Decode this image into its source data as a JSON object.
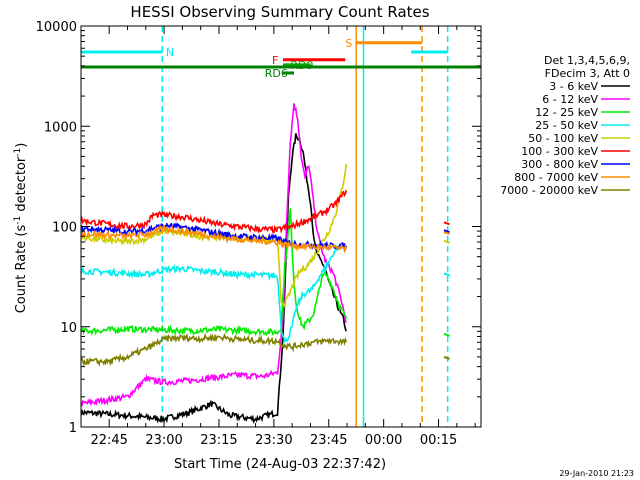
{
  "chart_data": {
    "type": "line",
    "title": "HESSI Observing Summary Count Rates",
    "xlabel": "Start Time (24-Aug-03 22:37:42)",
    "ylabel": "Count Rate (s",
    "ylabel_sup1": "-1",
    "ylabel_mid": " detector",
    "ylabel_sup2": "-1",
    "ylabel_end": ")",
    "footer_date": "29-Jan-2010 21:23",
    "xlim": [
      -7.7,
      101.6
    ],
    "ylim": [
      1,
      10000
    ],
    "yscale": "log",
    "x_unit_note": "minutes after 22:45",
    "xticks": [
      {
        "x": 0,
        "label": "22:45"
      },
      {
        "x": 15,
        "label": "23:00"
      },
      {
        "x": 30,
        "label": "23:15"
      },
      {
        "x": 45,
        "label": "23:30"
      },
      {
        "x": 60,
        "label": "23:45"
      },
      {
        "x": 75,
        "label": "00:00"
      },
      {
        "x": 90,
        "label": "00:15"
      }
    ],
    "yticks": [
      {
        "y": 1,
        "label": "1"
      },
      {
        "y": 10,
        "label": "10"
      },
      {
        "y": 100,
        "label": "100"
      },
      {
        "y": 1000,
        "label": "1000"
      },
      {
        "y": 10000,
        "label": "10000"
      }
    ],
    "legend": {
      "placement": "right",
      "header1": "Det 1,3,4,5,6,9,",
      "header2": "FDecim 3, Att 0"
    },
    "series": [
      {
        "name": "3 - 6 keV",
        "color": "#000000",
        "points": [
          [
            -7.7,
            1.4
          ],
          [
            5,
            1.3
          ],
          [
            15,
            1.2
          ],
          [
            22,
            1.4
          ],
          [
            28,
            1.7
          ],
          [
            33,
            1.3
          ],
          [
            40,
            1.2
          ],
          [
            46,
            1.4
          ],
          [
            47.5,
            8
          ],
          [
            49,
            200
          ],
          [
            50,
            500
          ],
          [
            51,
            800
          ],
          [
            52,
            750
          ],
          [
            53,
            550
          ],
          [
            54,
            300
          ],
          [
            55,
            180
          ],
          [
            56,
            70
          ],
          [
            57,
            50
          ],
          [
            58,
            45
          ],
          [
            59,
            38
          ],
          [
            60,
            28
          ],
          [
            61,
            22
          ],
          [
            62,
            18
          ],
          [
            63,
            14
          ],
          [
            64,
            12
          ],
          [
            64.8,
            9
          ]
        ]
      },
      {
        "name": "6 - 12 keV",
        "color": "#ff00ff",
        "points": [
          [
            -7.7,
            1.7
          ],
          [
            5,
            2.0
          ],
          [
            10,
            3.0
          ],
          [
            15,
            2.8
          ],
          [
            22,
            2.9
          ],
          [
            28,
            3.1
          ],
          [
            35,
            3.3
          ],
          [
            42,
            3.2
          ],
          [
            46,
            3.5
          ],
          [
            47.5,
            12
          ],
          [
            48.5,
            120
          ],
          [
            49.5,
            700
          ],
          [
            50.5,
            1700
          ],
          [
            51.5,
            1200
          ],
          [
            52.5,
            500
          ],
          [
            53.5,
            300
          ],
          [
            54.5,
            420
          ],
          [
            55.5,
            220
          ],
          [
            56.5,
            110
          ],
          [
            57.5,
            70
          ],
          [
            58.5,
            52
          ],
          [
            59.5,
            42
          ],
          [
            60.5,
            38
          ],
          [
            61.5,
            32
          ],
          [
            62.5,
            24
          ],
          [
            63.5,
            18
          ],
          [
            64.8,
            11
          ]
        ]
      },
      {
        "name": "12 - 25 keV",
        "color": "#00ee00",
        "points": [
          [
            -7.7,
            9
          ],
          [
            5,
            9.5
          ],
          [
            15,
            9.3
          ],
          [
            22,
            9.1
          ],
          [
            30,
            9.4
          ],
          [
            40,
            9.0
          ],
          [
            46,
            8.8
          ],
          [
            47,
            10
          ],
          [
            48,
            40
          ],
          [
            49,
            90
          ],
          [
            49.5,
            150
          ],
          [
            50,
            60
          ],
          [
            50.5,
            28
          ],
          [
            51,
            18
          ],
          [
            52,
            12
          ],
          [
            53,
            10
          ],
          [
            54,
            11
          ],
          [
            55,
            12
          ],
          [
            56,
            14
          ],
          [
            57,
            20
          ],
          [
            58,
            30
          ],
          [
            59,
            34
          ],
          [
            60,
            30
          ],
          [
            61,
            25
          ],
          [
            62,
            20
          ],
          [
            63,
            16
          ],
          [
            64.8,
            12
          ]
        ]
      },
      {
        "name": "25 - 50 keV",
        "color": "#00eeee",
        "points": [
          [
            -7.7,
            36
          ],
          [
            0,
            35
          ],
          [
            5,
            34
          ],
          [
            10,
            33
          ],
          [
            15,
            37
          ],
          [
            20,
            38
          ],
          [
            25,
            36
          ],
          [
            30,
            35
          ],
          [
            35,
            33
          ],
          [
            40,
            33
          ],
          [
            46,
            32
          ],
          [
            47,
            10
          ],
          [
            48,
            7
          ],
          [
            49,
            8
          ],
          [
            50,
            10
          ],
          [
            51,
            15
          ],
          [
            52,
            18
          ],
          [
            53,
            21
          ],
          [
            54,
            22
          ],
          [
            55,
            23
          ],
          [
            56,
            25
          ],
          [
            57,
            30
          ],
          [
            58,
            34
          ],
          [
            59,
            38
          ],
          [
            60,
            44
          ],
          [
            61,
            52
          ],
          [
            62,
            60
          ],
          [
            63,
            62
          ],
          [
            64.8,
            64
          ]
        ]
      },
      {
        "name": "50 - 100 keV",
        "color": "#cccc00",
        "points": [
          [
            -7.7,
            78
          ],
          [
            0,
            72
          ],
          [
            5,
            70
          ],
          [
            10,
            75
          ],
          [
            15,
            90
          ],
          [
            20,
            85
          ],
          [
            25,
            80
          ],
          [
            30,
            78
          ],
          [
            35,
            76
          ],
          [
            40,
            74
          ],
          [
            46,
            72
          ],
          [
            47,
            18
          ],
          [
            48,
            17
          ],
          [
            49,
            20
          ],
          [
            50,
            25
          ],
          [
            51,
            30
          ],
          [
            52,
            35
          ],
          [
            53,
            38
          ],
          [
            54,
            40
          ],
          [
            55,
            45
          ],
          [
            56,
            50
          ],
          [
            57,
            58
          ],
          [
            58,
            68
          ],
          [
            59,
            78
          ],
          [
            60,
            90
          ],
          [
            61,
            110
          ],
          [
            62,
            140
          ],
          [
            63,
            190
          ],
          [
            64,
            280
          ],
          [
            64.8,
            420
          ]
        ]
      },
      {
        "name": "100 - 300 keV",
        "color": "#ff0000",
        "points": [
          [
            -7.7,
            115
          ],
          [
            0,
            105
          ],
          [
            5,
            100
          ],
          [
            10,
            105
          ],
          [
            12,
            130
          ],
          [
            15,
            130
          ],
          [
            20,
            125
          ],
          [
            25,
            115
          ],
          [
            30,
            105
          ],
          [
            35,
            100
          ],
          [
            40,
            95
          ],
          [
            46,
            92
          ],
          [
            48,
            98
          ],
          [
            50,
            100
          ],
          [
            52,
            108
          ],
          [
            54,
            115
          ],
          [
            56,
            125
          ],
          [
            58,
            135
          ],
          [
            60,
            150
          ],
          [
            62,
            170
          ],
          [
            63,
            190
          ],
          [
            64.8,
            230
          ]
        ]
      },
      {
        "name": "300 - 800 keV",
        "color": "#0000ff",
        "points": [
          [
            -7.7,
            95
          ],
          [
            0,
            92
          ],
          [
            5,
            88
          ],
          [
            10,
            92
          ],
          [
            15,
            102
          ],
          [
            20,
            98
          ],
          [
            25,
            92
          ],
          [
            30,
            85
          ],
          [
            35,
            80
          ],
          [
            40,
            78
          ],
          [
            46,
            76
          ],
          [
            48,
            70
          ],
          [
            50,
            68
          ],
          [
            52,
            66
          ],
          [
            54,
            66
          ],
          [
            56,
            65
          ],
          [
            58,
            65
          ],
          [
            60,
            64
          ],
          [
            62,
            64
          ],
          [
            64.8,
            64
          ]
        ]
      },
      {
        "name": "800 - 7000 keV",
        "color": "#ff8c00",
        "points": [
          [
            -7.7,
            85
          ],
          [
            0,
            82
          ],
          [
            5,
            80
          ],
          [
            10,
            84
          ],
          [
            15,
            95
          ],
          [
            20,
            90
          ],
          [
            25,
            84
          ],
          [
            30,
            78
          ],
          [
            35,
            75
          ],
          [
            40,
            72
          ],
          [
            46,
            70
          ],
          [
            48,
            66
          ],
          [
            50,
            65
          ],
          [
            52,
            64
          ],
          [
            54,
            63
          ],
          [
            56,
            63
          ],
          [
            58,
            62
          ],
          [
            60,
            62
          ],
          [
            62,
            61
          ],
          [
            64.8,
            60
          ]
        ]
      },
      {
        "name": "7000 - 20000 keV",
        "color": "#808000",
        "points": [
          [
            -7.7,
            4.5
          ],
          [
            0,
            4.5
          ],
          [
            5,
            5
          ],
          [
            10,
            6
          ],
          [
            15,
            7.5
          ],
          [
            20,
            7.8
          ],
          [
            25,
            7.6
          ],
          [
            30,
            7.9
          ],
          [
            35,
            7.5
          ],
          [
            40,
            7.3
          ],
          [
            46,
            7.2
          ],
          [
            48,
            6.5
          ],
          [
            50,
            6.3
          ],
          [
            52,
            6.6
          ],
          [
            54,
            6.8
          ],
          [
            56,
            7.0
          ],
          [
            58,
            7.1
          ],
          [
            60,
            7.3
          ],
          [
            62,
            7.2
          ],
          [
            64.8,
            7.0
          ]
        ]
      }
    ],
    "after_gap_points": [
      {
        "color": "#ff0000",
        "y": 110
      },
      {
        "color": "#0000ff",
        "y": 92
      },
      {
        "color": "#ff8c00",
        "y": 88
      },
      {
        "color": "#cccc00",
        "y": 72
      },
      {
        "color": "#00eeee",
        "y": 34
      },
      {
        "color": "#00ee00",
        "y": 8.5
      },
      {
        "color": "#808000",
        "y": 5
      }
    ],
    "after_gap_x": [
      91.5,
      93
    ],
    "flag_bars": [
      {
        "label": "N",
        "color": "#00eeee",
        "y": 5500,
        "segments": [
          [
            -7.7,
            14.5
          ],
          [
            82.5,
            92.5
          ]
        ],
        "label_x": 15.5
      },
      {
        "label": "S",
        "color": "#ff8c00",
        "y": 6800,
        "segments": [
          [
            67.5,
            85.5
          ]
        ],
        "label_x": 64.5
      },
      {
        "label": "F",
        "color": "#ff0000",
        "y": 4600,
        "segments": [
          [
            47.5,
            64.5
          ]
        ],
        "label_x": 44.5
      },
      {
        "label": "RD9",
        "color": "#00aa00",
        "y": 4100,
        "segments": [
          [
            47.5,
            55
          ]
        ],
        "label_x": 49.5
      },
      {
        "label": "RD6",
        "color": "#008000",
        "y": 3400,
        "segments": [
          [
            47.5,
            50.5
          ]
        ],
        "label_x": 42.5
      },
      {
        "label": "",
        "color": "#008000",
        "y": 3900,
        "segments": [
          [
            -7.7,
            101.6
          ]
        ],
        "label_x": 0
      }
    ],
    "vlines": [
      {
        "x": 14.5,
        "color": "#00eeee",
        "style": "dashed"
      },
      {
        "x": 67.5,
        "color": "#ff8c00",
        "style": "solid"
      },
      {
        "x": 69.5,
        "color": "#00eeee",
        "style": "solid"
      },
      {
        "x": 85.5,
        "color": "#ff8c00",
        "style": "dashed"
      },
      {
        "x": 92.5,
        "color": "#00eeee",
        "style": "dashed"
      }
    ],
    "grid": false
  }
}
